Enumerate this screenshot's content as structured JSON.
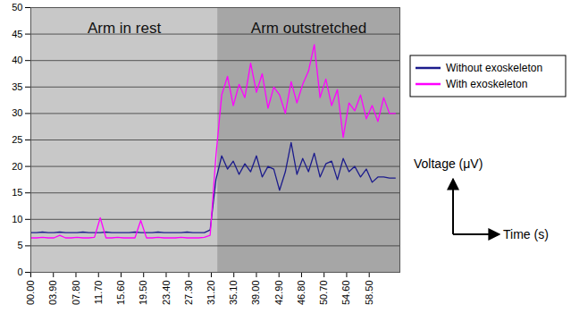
{
  "chart_data": {
    "type": "line",
    "x_label": "Time (s)",
    "y_label": "Voltage (μV)",
    "x": [
      0,
      1,
      2,
      3,
      4,
      5,
      6,
      7,
      8,
      9,
      10,
      11,
      12,
      13,
      14,
      15,
      16,
      17,
      18,
      19,
      20,
      21,
      22,
      23,
      24,
      25,
      26,
      27,
      28,
      29,
      30,
      31,
      32,
      33,
      34,
      35,
      36,
      37,
      38,
      39,
      40,
      41,
      42,
      43,
      44,
      45,
      46,
      47,
      48,
      49,
      50,
      51,
      52,
      53,
      54,
      55,
      56,
      57,
      58,
      59,
      60,
      61,
      62,
      63
    ],
    "series": [
      {
        "name": "Without exoskeleton",
        "color": "#1c1c8c",
        "values": [
          7.5,
          7.5,
          7.6,
          7.5,
          7.5,
          7.6,
          7.5,
          7.5,
          7.5,
          7.6,
          7.5,
          7.5,
          7.5,
          7.6,
          7.5,
          7.5,
          7.5,
          7.5,
          7.6,
          7.5,
          7.5,
          7.5,
          7.6,
          7.5,
          7.5,
          7.5,
          7.5,
          7.6,
          7.5,
          7.5,
          7.5,
          8.0,
          17.5,
          22.0,
          19.5,
          21.0,
          18.5,
          20.5,
          19.0,
          22.0,
          18.0,
          20.0,
          19.5,
          15.5,
          19.0,
          24.5,
          18.5,
          21.5,
          19.0,
          22.5,
          18.0,
          20.5,
          21.0,
          17.5,
          21.5,
          19.0,
          20.0,
          18.0,
          19.5,
          17.0,
          18.0,
          18.0,
          17.8,
          17.8
        ]
      },
      {
        "name": "With exoskeleton",
        "color": "#ff00ff",
        "values": [
          6.5,
          6.5,
          6.6,
          6.5,
          6.5,
          7.0,
          6.5,
          6.5,
          6.6,
          6.5,
          6.5,
          6.6,
          10.3,
          6.5,
          6.5,
          6.6,
          6.5,
          6.5,
          6.5,
          9.8,
          6.5,
          6.5,
          6.6,
          6.5,
          6.5,
          6.5,
          6.6,
          6.5,
          6.5,
          6.5,
          6.6,
          7.0,
          22.0,
          33.5,
          37.0,
          31.5,
          35.5,
          33.0,
          39.5,
          34.0,
          37.5,
          31.0,
          35.0,
          33.5,
          30.0,
          36.0,
          32.0,
          35.5,
          38.0,
          43.0,
          33.0,
          36.5,
          31.5,
          34.5,
          25.5,
          32.0,
          30.5,
          33.5,
          29.0,
          31.5,
          28.5,
          33.0,
          30.0,
          30.0
        ]
      }
    ],
    "xlim": [
      0,
      63.8
    ],
    "xticks": [
      {
        "value": 0,
        "label": "00.00"
      },
      {
        "value": 3.9,
        "label": "03.90"
      },
      {
        "value": 7.8,
        "label": "07.80"
      },
      {
        "value": 11.7,
        "label": "11.70"
      },
      {
        "value": 15.6,
        "label": "15.60"
      },
      {
        "value": 19.5,
        "label": "19.50"
      },
      {
        "value": 23.4,
        "label": "23.40"
      },
      {
        "value": 27.3,
        "label": "27.30"
      },
      {
        "value": 31.2,
        "label": "31.20"
      },
      {
        "value": 35.1,
        "label": "35.10"
      },
      {
        "value": 39,
        "label": "39.00"
      },
      {
        "value": 42.9,
        "label": "42.90"
      },
      {
        "value": 46.8,
        "label": "46.80"
      },
      {
        "value": 50.7,
        "label": "50.70"
      },
      {
        "value": 54.6,
        "label": "54.60"
      },
      {
        "value": 58.5,
        "label": "58.50"
      }
    ],
    "ylim": [
      0,
      50
    ],
    "yticks": [
      0,
      5,
      10,
      15,
      20,
      25,
      30,
      35,
      40,
      45,
      50
    ],
    "grid": true,
    "legend": "right",
    "annotations": [
      {
        "text": "Arm in rest",
        "x_start": 0,
        "x_end": 32.3,
        "color": "#c8c8c8"
      },
      {
        "text": "Arm outstretched",
        "x_start": 32.3,
        "x_end": 63.8,
        "color": "#a6a6a6"
      }
    ]
  }
}
